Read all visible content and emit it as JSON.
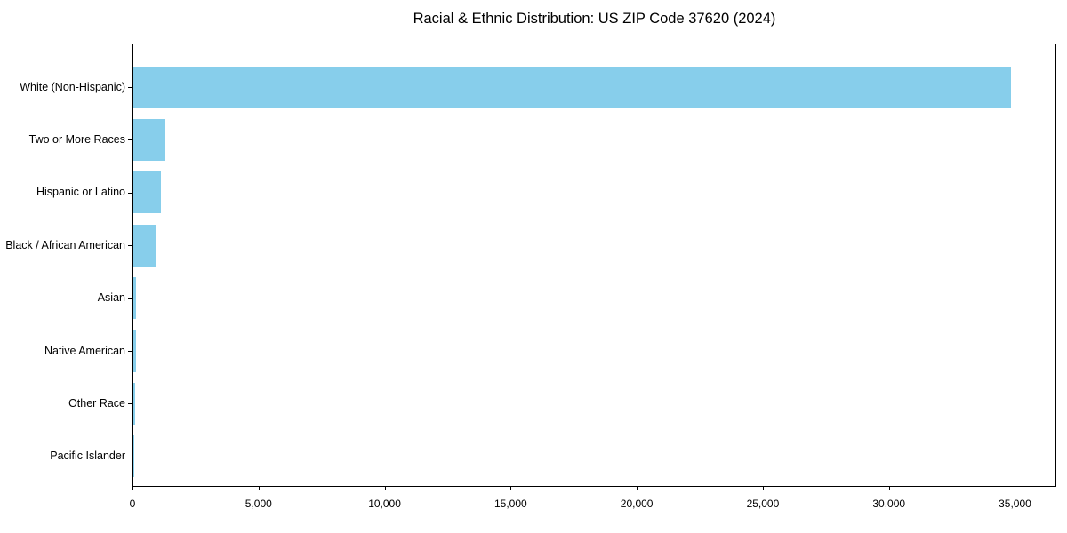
{
  "chart_data": {
    "type": "bar",
    "orientation": "horizontal",
    "title": "Racial & Ethnic Distribution: US ZIP Code 37620 (2024)",
    "categories": [
      "White (Non-Hispanic)",
      "Two or More Races",
      "Hispanic or Latino",
      "Black / African American",
      "Asian",
      "Native American",
      "Other Race",
      "Pacific Islander"
    ],
    "values": [
      34800,
      1280,
      1090,
      880,
      120,
      110,
      85,
      10
    ],
    "xlabel": "",
    "ylabel": "",
    "xlim": [
      0,
      36640
    ],
    "xticks": [
      0,
      5000,
      10000,
      15000,
      20000,
      25000,
      30000,
      35000
    ],
    "xtick_labels": [
      "0",
      "5,000",
      "10,000",
      "15,000",
      "20,000",
      "25,000",
      "30,000",
      "35,000"
    ],
    "bar_color": "#87CEEB",
    "text_color": "#000000",
    "grid": false,
    "legend": null
  }
}
